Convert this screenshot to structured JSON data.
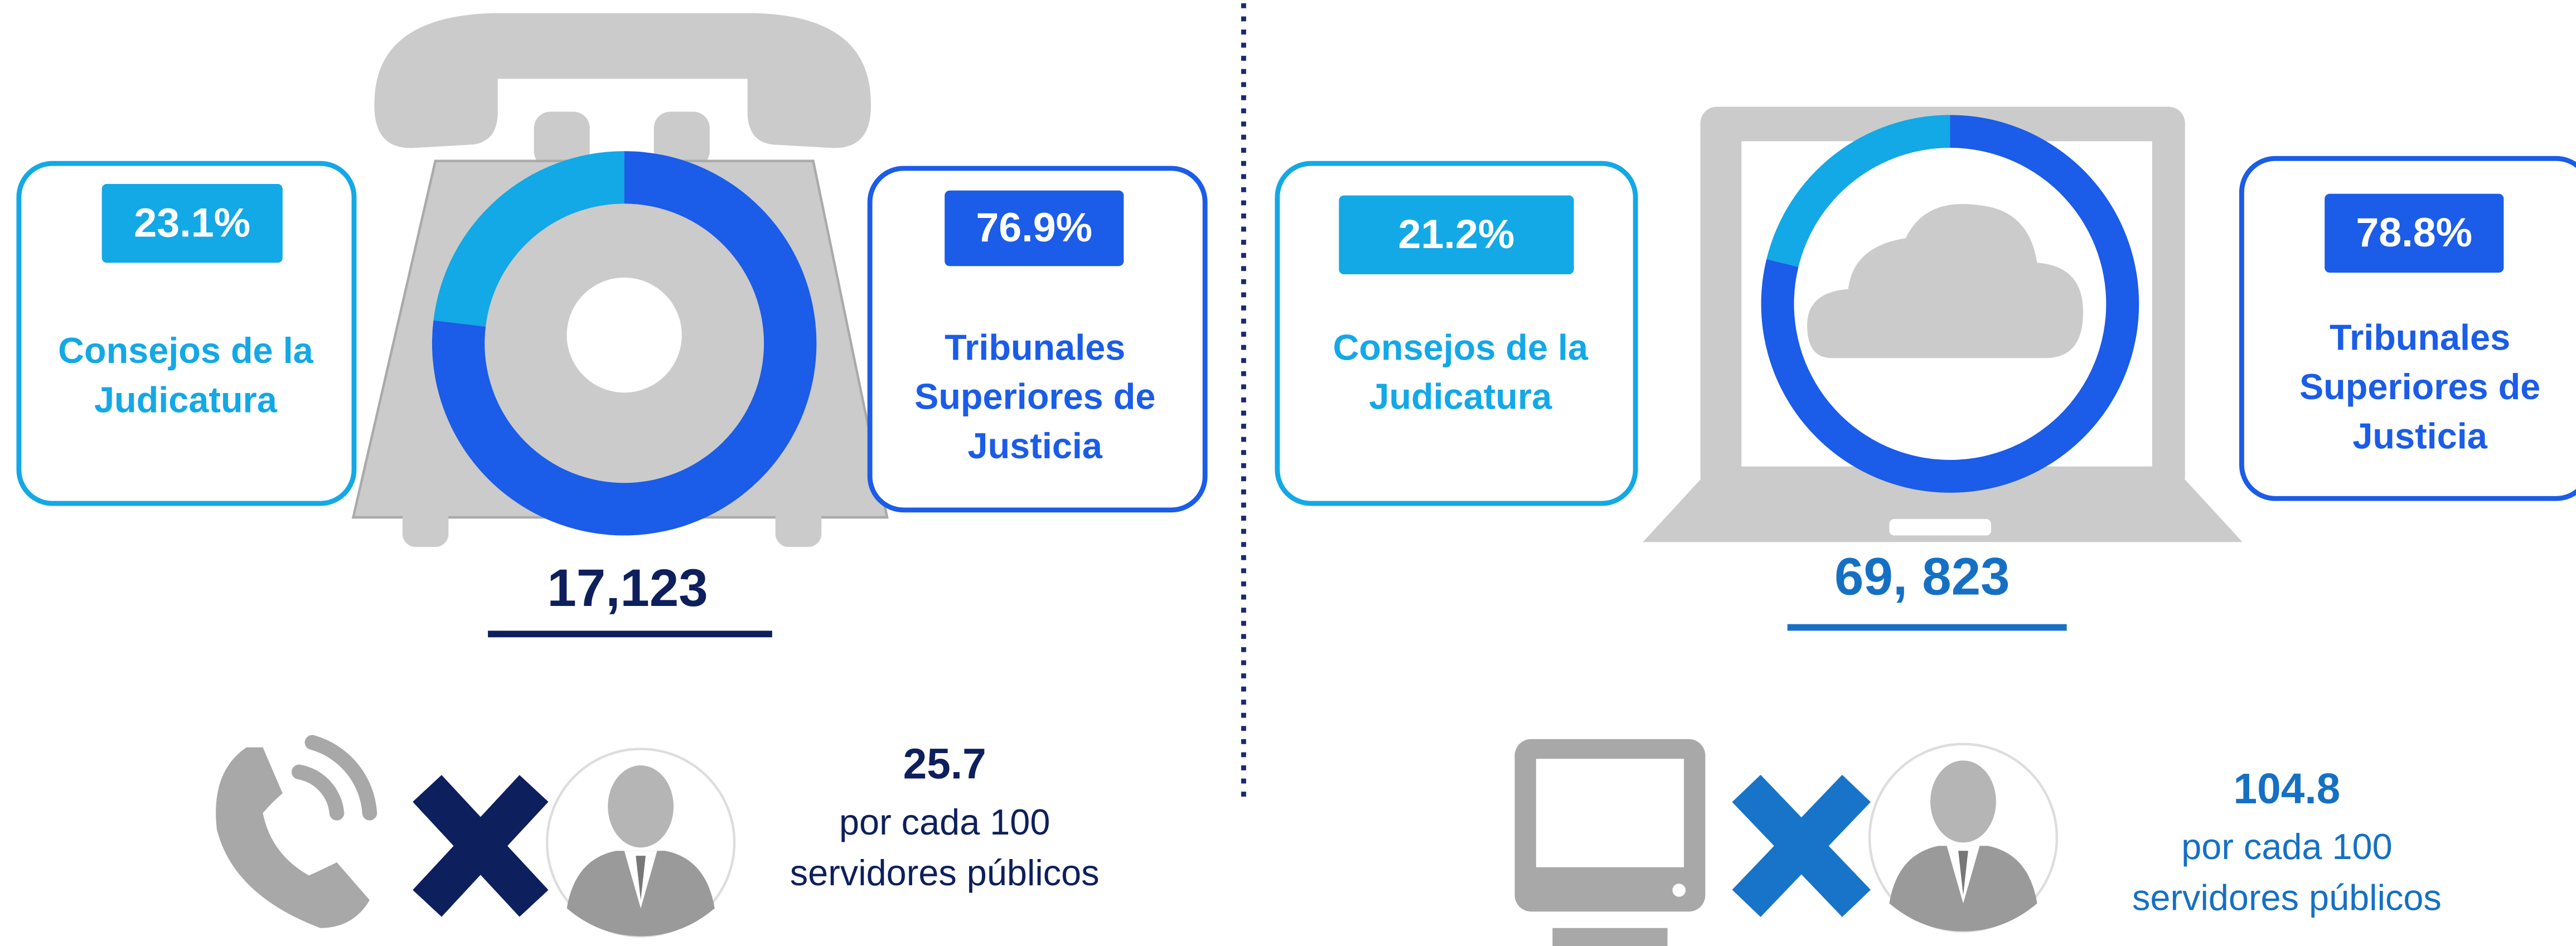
{
  "chart_data": [
    {
      "type": "donut",
      "categories": [
        "Consejos de la Judicatura",
        "Tribunales Superiores de Justicia"
      ],
      "values": [
        23.1,
        76.9
      ],
      "value_labels": [
        "23.1%",
        "76.9%"
      ],
      "colors": [
        "#13a8e6",
        "#1b5ce8"
      ],
      "total": "17,123",
      "rate": 25.7,
      "rate_text": "por cada 100 servidores públicos"
    },
    {
      "type": "donut",
      "categories": [
        "Consejos de la Judicatura",
        "Tribunales Superiores de Justicia"
      ],
      "values": [
        21.2,
        78.8
      ],
      "value_labels": [
        "21.2%",
        "78.8%"
      ],
      "colors": [
        "#13a8e6",
        "#1b5ce8"
      ],
      "total": "69, 823",
      "rate": 104.8,
      "rate_text": "por cada 100 servidores públicos"
    }
  ]
}
